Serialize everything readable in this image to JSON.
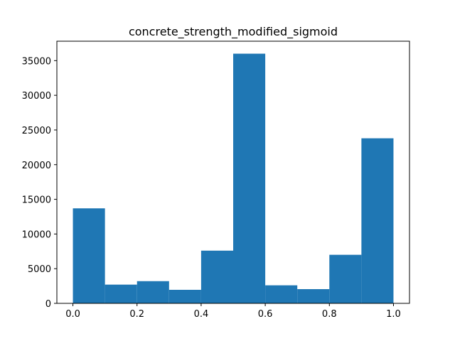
{
  "chart_data": {
    "type": "bar",
    "title": "concrete_strength_modified_sigmoid",
    "xlabel": "",
    "ylabel": "",
    "bins": [
      {
        "x0": 0.0,
        "x1": 0.1,
        "count": 13700
      },
      {
        "x0": 0.1,
        "x1": 0.2,
        "count": 2700
      },
      {
        "x0": 0.2,
        "x1": 0.3,
        "count": 3200
      },
      {
        "x0": 0.3,
        "x1": 0.4,
        "count": 1950
      },
      {
        "x0": 0.4,
        "x1": 0.5,
        "count": 7600
      },
      {
        "x0": 0.5,
        "x1": 0.6,
        "count": 36000
      },
      {
        "x0": 0.6,
        "x1": 0.7,
        "count": 2600
      },
      {
        "x0": 0.7,
        "x1": 0.8,
        "count": 2050
      },
      {
        "x0": 0.8,
        "x1": 0.9,
        "count": 7000
      },
      {
        "x0": 0.9,
        "x1": 1.0,
        "count": 23800
      }
    ],
    "xlim": [
      -0.05,
      1.05
    ],
    "ylim": [
      0,
      37800
    ],
    "xticks": [
      0.0,
      0.2,
      0.4,
      0.6,
      0.8,
      1.0
    ],
    "xtick_labels": [
      "0.0",
      "0.2",
      "0.4",
      "0.6",
      "0.8",
      "1.0"
    ],
    "yticks": [
      0,
      5000,
      10000,
      15000,
      20000,
      25000,
      30000,
      35000
    ],
    "ytick_labels": [
      "0",
      "5000",
      "10000",
      "15000",
      "20000",
      "25000",
      "30000",
      "35000"
    ],
    "grid": false,
    "bar_color": "#1f77b4"
  }
}
